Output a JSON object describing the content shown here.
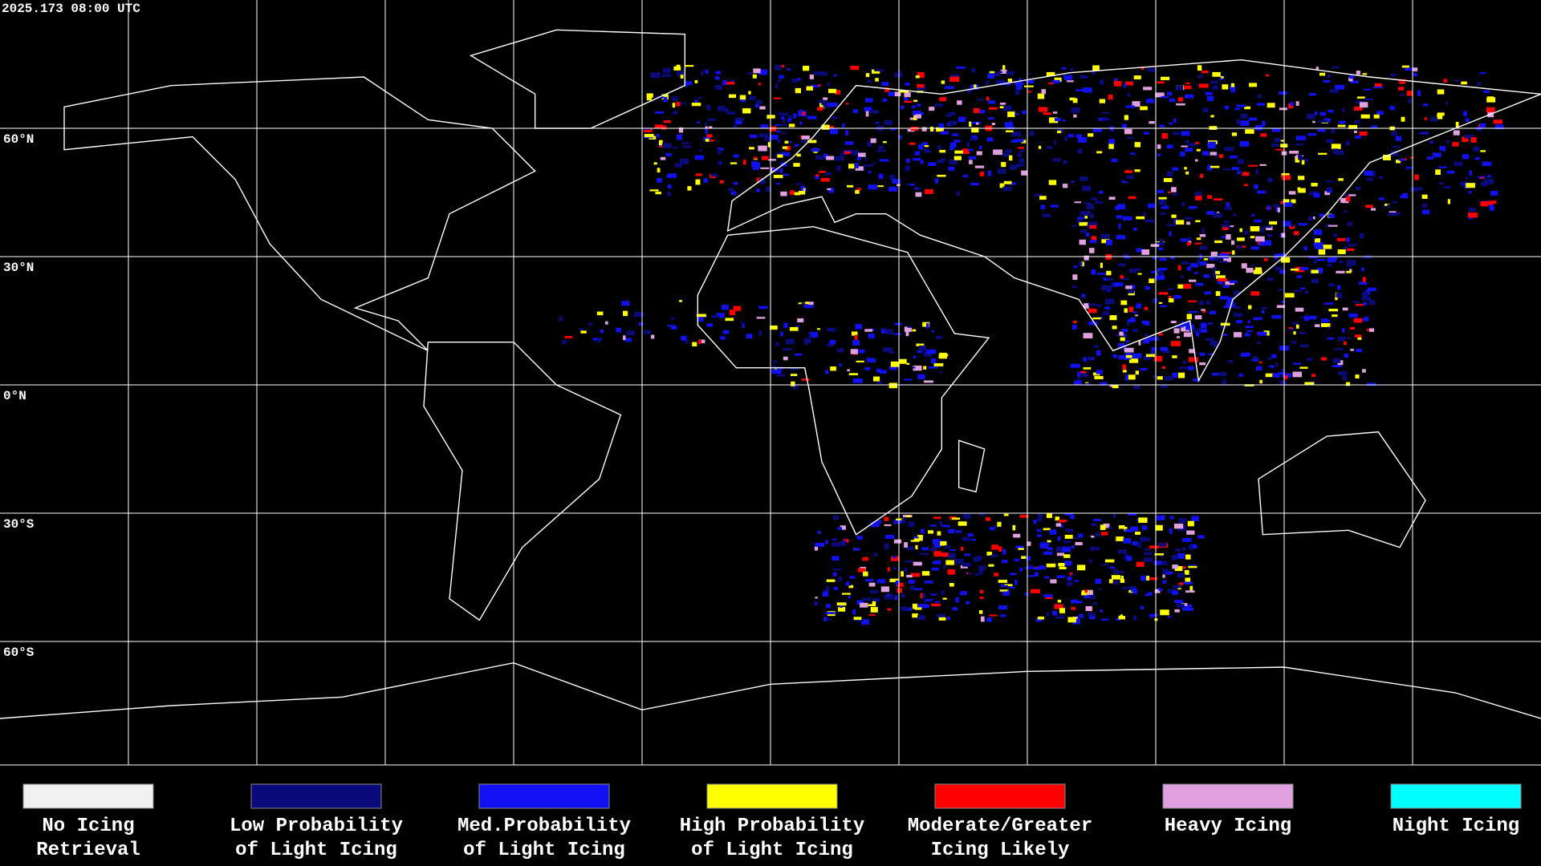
{
  "header": {
    "title": "2025.173 08:00 UTC"
  },
  "map": {
    "lat_labels": [
      "60°N",
      "30°N",
      "0°N",
      "30°S",
      "60°S"
    ]
  },
  "legend": {
    "items": [
      {
        "lines": [
          "No Icing",
          "Retrieval"
        ],
        "color": "#f0f0f0"
      },
      {
        "lines": [
          "Low Probability",
          "of Light Icing"
        ],
        "color": "#0a0a7a"
      },
      {
        "lines": [
          "Med.Probability",
          "of Light Icing"
        ],
        "color": "#1010f0"
      },
      {
        "lines": [
          "High Probability",
          "of Light Icing"
        ],
        "color": "#ffff00"
      },
      {
        "lines": [
          "Moderate/Greater",
          "Icing Likely"
        ],
        "color": "#ff0000"
      },
      {
        "lines": [
          "Heavy Icing"
        ],
        "color": "#e0a0e0"
      },
      {
        "lines": [
          "Night Icing"
        ],
        "color": "#00ffff"
      }
    ]
  }
}
